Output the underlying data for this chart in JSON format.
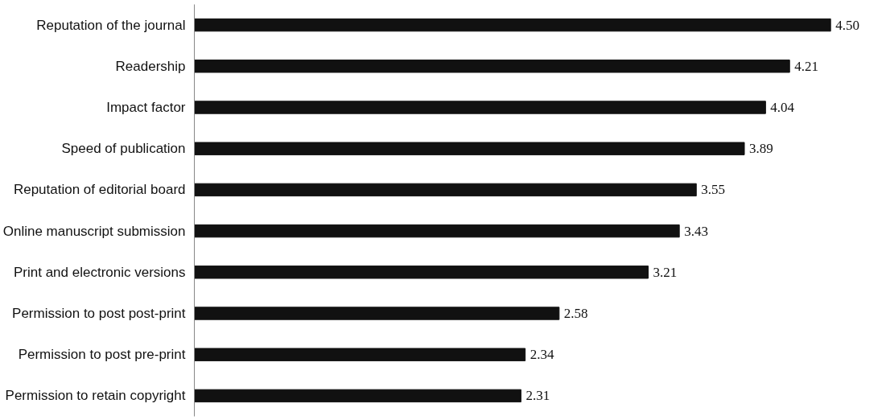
{
  "chart_data": {
    "type": "bar",
    "orientation": "horizontal",
    "categories": [
      "Reputation of the journal",
      "Readership",
      "Impact factor",
      "Speed of publication",
      "Reputation of editorial board",
      "Online manuscript submission",
      "Print and electronic versions",
      "Permission to post post-print",
      "Permission to post pre-print",
      "Permission to retain copyright"
    ],
    "values": [
      4.5,
      4.21,
      4.04,
      3.89,
      3.55,
      3.43,
      3.21,
      2.58,
      2.34,
      2.31
    ],
    "value_labels": [
      "4.50",
      "4.21",
      "4.04",
      "3.89",
      "3.55",
      "3.43",
      "3.21",
      "2.58",
      "2.34",
      "2.31"
    ],
    "color": "#111111",
    "grid": false
  }
}
